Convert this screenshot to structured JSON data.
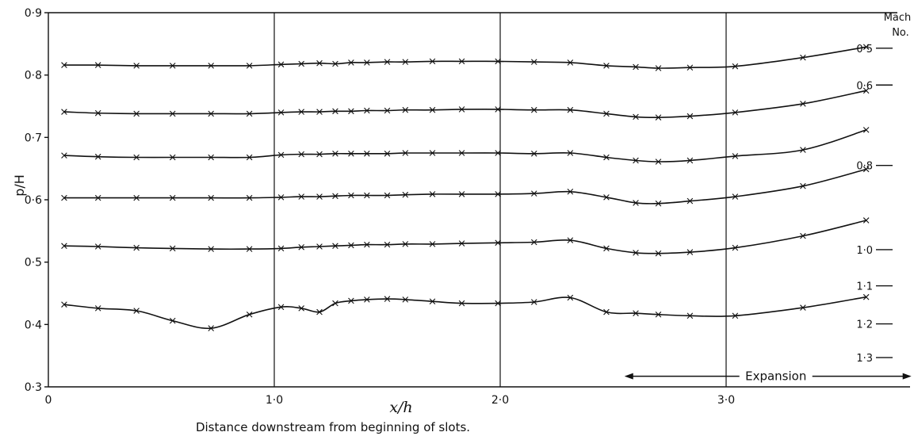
{
  "chart_data": {
    "type": "line",
    "ylabel": "p/H",
    "xlabel": "x/h",
    "caption": "Distance downstream from beginning of slots.",
    "xlim": [
      0,
      3.85
    ],
    "ylim": [
      0.3,
      0.9
    ],
    "grid": "vertical lines at x/h = 1.0, 2.0, 3.0",
    "x_ticks": [
      {
        "value": 0,
        "label": "0"
      },
      {
        "value": 1.0,
        "label": "1·0"
      },
      {
        "value": 2.0,
        "label": "2·0"
      },
      {
        "value": 3.0,
        "label": "3·0"
      }
    ],
    "y_ticks": [
      {
        "value": 0.3,
        "label": "0·3"
      },
      {
        "value": 0.4,
        "label": "0·4"
      },
      {
        "value": 0.5,
        "label": "0·5"
      },
      {
        "value": 0.6,
        "label": "0·6"
      },
      {
        "value": 0.7,
        "label": "0·7"
      },
      {
        "value": 0.8,
        "label": "0·8"
      },
      {
        "value": 0.9,
        "label": "0·9"
      }
    ],
    "mach_scale": {
      "title_line1": "Mach",
      "title_line2": "No.",
      "entries": [
        {
          "label": "0·5",
          "p_over_H": 0.843
        },
        {
          "label": "0·6",
          "p_over_H": 0.784
        },
        {
          "label": "0·8",
          "p_over_H": 0.655
        },
        {
          "label": "1·0",
          "p_over_H": 0.52
        },
        {
          "label": "1·1",
          "p_over_H": 0.462
        },
        {
          "label": "1·2",
          "p_over_H": 0.401
        },
        {
          "label": "1·3",
          "p_over_H": 0.347
        }
      ]
    },
    "annotation": {
      "text": "Expansion",
      "x_start": 2.55,
      "x_end": 3.82,
      "y": 0.317
    },
    "series": [
      {
        "x": [
          0.07,
          0.22,
          0.39,
          0.55,
          0.72,
          0.89,
          1.03,
          1.12,
          1.2,
          1.27,
          1.34,
          1.41,
          1.5,
          1.58,
          1.7,
          1.83,
          1.99,
          2.15,
          2.31,
          2.47,
          2.6,
          2.7,
          2.84,
          3.04,
          3.34,
          3.62
        ],
        "y": [
          0.816,
          0.816,
          0.815,
          0.815,
          0.815,
          0.815,
          0.817,
          0.818,
          0.819,
          0.818,
          0.82,
          0.82,
          0.821,
          0.821,
          0.822,
          0.822,
          0.822,
          0.821,
          0.82,
          0.815,
          0.813,
          0.811,
          0.812,
          0.814,
          0.828,
          0.845
        ]
      },
      {
        "x": [
          0.07,
          0.22,
          0.39,
          0.55,
          0.72,
          0.89,
          1.03,
          1.12,
          1.2,
          1.27,
          1.34,
          1.41,
          1.5,
          1.58,
          1.7,
          1.83,
          1.99,
          2.15,
          2.31,
          2.47,
          2.6,
          2.7,
          2.84,
          3.04,
          3.34,
          3.62
        ],
        "y": [
          0.741,
          0.739,
          0.738,
          0.738,
          0.738,
          0.738,
          0.74,
          0.741,
          0.741,
          0.742,
          0.742,
          0.743,
          0.743,
          0.744,
          0.744,
          0.745,
          0.745,
          0.744,
          0.744,
          0.738,
          0.733,
          0.732,
          0.734,
          0.74,
          0.754,
          0.775
        ]
      },
      {
        "x": [
          0.07,
          0.22,
          0.39,
          0.55,
          0.72,
          0.89,
          1.03,
          1.12,
          1.2,
          1.27,
          1.34,
          1.41,
          1.5,
          1.58,
          1.7,
          1.83,
          1.99,
          2.15,
          2.31,
          2.47,
          2.6,
          2.7,
          2.84,
          3.04,
          3.34,
          3.62
        ],
        "y": [
          0.671,
          0.669,
          0.668,
          0.668,
          0.668,
          0.668,
          0.672,
          0.673,
          0.673,
          0.674,
          0.674,
          0.674,
          0.674,
          0.675,
          0.675,
          0.675,
          0.675,
          0.674,
          0.675,
          0.668,
          0.663,
          0.661,
          0.663,
          0.67,
          0.68,
          0.712
        ]
      },
      {
        "x": [
          0.07,
          0.22,
          0.39,
          0.55,
          0.72,
          0.89,
          1.03,
          1.12,
          1.2,
          1.27,
          1.34,
          1.41,
          1.5,
          1.58,
          1.7,
          1.83,
          1.99,
          2.15,
          2.31,
          2.47,
          2.6,
          2.7,
          2.84,
          3.04,
          3.34,
          3.62
        ],
        "y": [
          0.603,
          0.603,
          0.603,
          0.603,
          0.603,
          0.603,
          0.604,
          0.605,
          0.605,
          0.606,
          0.607,
          0.607,
          0.607,
          0.608,
          0.609,
          0.609,
          0.609,
          0.61,
          0.613,
          0.604,
          0.595,
          0.594,
          0.598,
          0.605,
          0.622,
          0.649
        ]
      },
      {
        "x": [
          0.07,
          0.22,
          0.39,
          0.55,
          0.72,
          0.89,
          1.03,
          1.12,
          1.2,
          1.27,
          1.34,
          1.41,
          1.5,
          1.58,
          1.7,
          1.83,
          1.99,
          2.15,
          2.31,
          2.47,
          2.6,
          2.7,
          2.84,
          3.04,
          3.34,
          3.62
        ],
        "y": [
          0.526,
          0.525,
          0.523,
          0.522,
          0.521,
          0.521,
          0.522,
          0.524,
          0.525,
          0.526,
          0.527,
          0.528,
          0.528,
          0.529,
          0.529,
          0.53,
          0.531,
          0.532,
          0.535,
          0.522,
          0.515,
          0.514,
          0.516,
          0.523,
          0.542,
          0.567
        ]
      },
      {
        "x": [
          0.07,
          0.22,
          0.39,
          0.55,
          0.72,
          0.89,
          1.03,
          1.12,
          1.2,
          1.27,
          1.34,
          1.41,
          1.5,
          1.58,
          1.7,
          1.83,
          1.99,
          2.15,
          2.31,
          2.47,
          2.6,
          2.7,
          2.84,
          3.04,
          3.34,
          3.62
        ],
        "y": [
          0.432,
          0.426,
          0.422,
          0.406,
          0.394,
          0.416,
          0.428,
          0.426,
          0.42,
          0.434,
          0.438,
          0.44,
          0.441,
          0.44,
          0.437,
          0.434,
          0.434,
          0.436,
          0.443,
          0.42,
          0.418,
          0.416,
          0.414,
          0.414,
          0.427,
          0.444
        ]
      }
    ]
  }
}
